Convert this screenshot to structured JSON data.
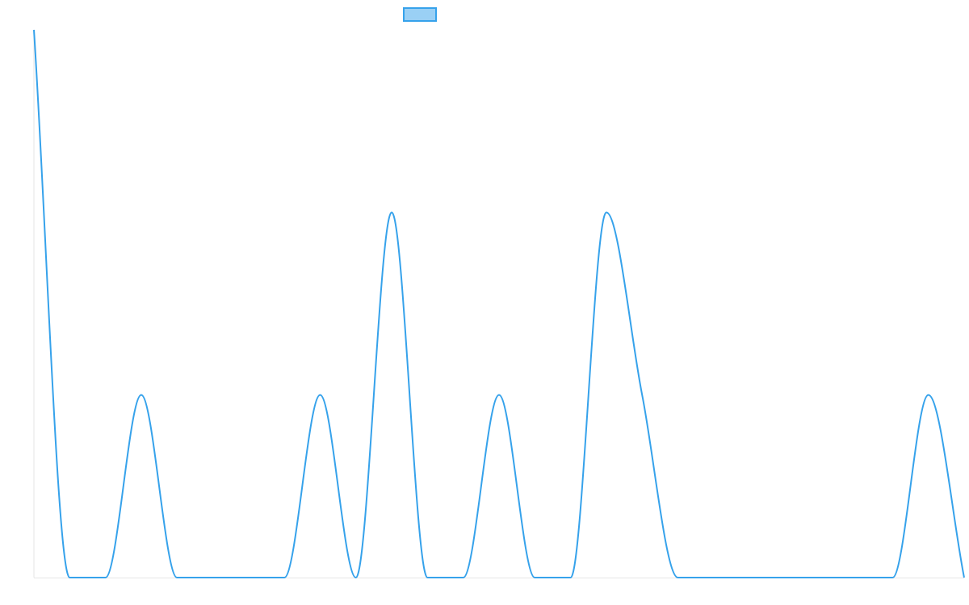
{
  "chart_data": {
    "type": "line",
    "title": "",
    "xlabel": "",
    "ylabel": "",
    "grid": false,
    "legend": {
      "placement": "top-center",
      "entries": [
        {
          "label": "",
          "swatch_fill": "#9ad0f5",
          "swatch_stroke": "#36a2eb"
        }
      ]
    },
    "ylim": [
      0,
      3
    ],
    "x": [
      0,
      1,
      2,
      3,
      4,
      5,
      6,
      7,
      8,
      9,
      10,
      11,
      12,
      13,
      14,
      15,
      16,
      17,
      18,
      19,
      20,
      21,
      22,
      23,
      24,
      25,
      26
    ],
    "series": [
      {
        "name": "",
        "color": "#36a2eb",
        "values": [
          3,
          0,
          0,
          1,
          0,
          0,
          0,
          0,
          1,
          0,
          2,
          0,
          0,
          1,
          0,
          0,
          2,
          1,
          0,
          0,
          0,
          0,
          0,
          0,
          0,
          1,
          0
        ]
      }
    ]
  }
}
